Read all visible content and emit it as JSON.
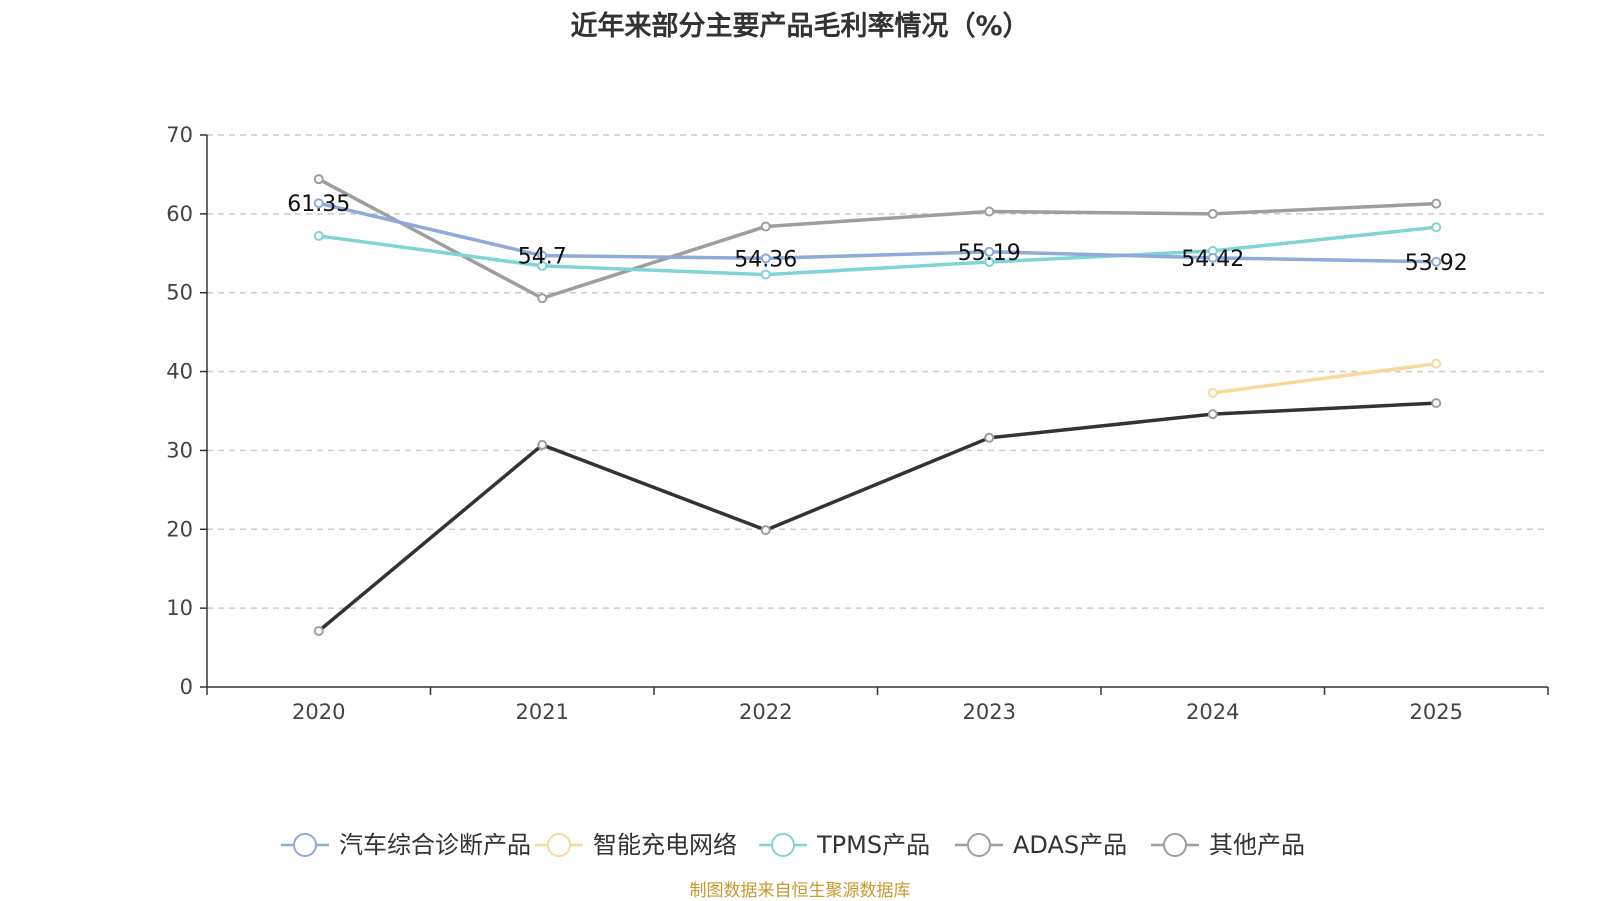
{
  "chart_data": {
    "type": "line",
    "title": "近年来部分主要产品毛利率情况（%）",
    "categories": [
      "2020",
      "2021",
      "2022",
      "2023",
      "2024",
      "2025"
    ],
    "ylim": [
      0,
      70
    ],
    "yticks": [
      0,
      10,
      20,
      30,
      40,
      50,
      60,
      70
    ],
    "grid": true,
    "legend_position": "bottom",
    "series": [
      {
        "name": "汽车综合诊断产品",
        "color": "#8eaad8",
        "values": [
          61.35,
          54.7,
          54.36,
          55.19,
          54.42,
          53.92
        ],
        "labels": [
          "61.35",
          "54.7",
          "54.36",
          "55.19",
          "54.42",
          "53.92"
        ]
      },
      {
        "name": "智能充电网络",
        "color": "#f9d99a",
        "values": [
          null,
          null,
          null,
          null,
          37.3,
          41.0
        ]
      },
      {
        "name": "TPMS产品",
        "color": "#80d4d4",
        "values": [
          57.2,
          53.4,
          52.3,
          53.9,
          55.3,
          58.3
        ]
      },
      {
        "name": "ADAS产品",
        "color": "#9e9e9e",
        "values": [
          64.4,
          49.3,
          58.4,
          60.3,
          60.0,
          61.3
        ]
      },
      {
        "name": "其他产品",
        "color": "#333333",
        "legend_color": "#9e9e9e",
        "values": [
          7.1,
          30.7,
          19.9,
          31.6,
          34.6,
          36.0
        ]
      }
    ]
  },
  "footer": "制图数据来自恒生聚源数据库"
}
